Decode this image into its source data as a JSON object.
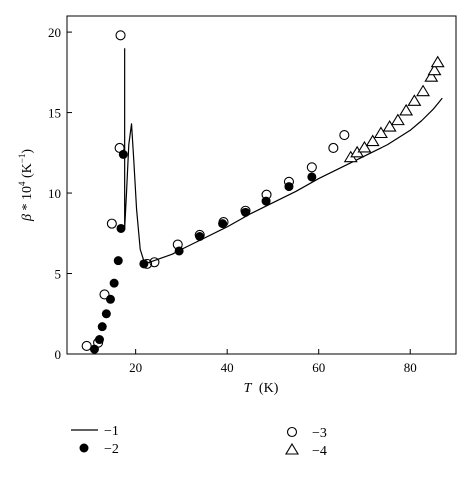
{
  "chart_data": {
    "type": "scatter",
    "xlabel": {
      "var": "T",
      "unit": "(K)"
    },
    "ylabel": {
      "var": "β",
      "mult": " * 10",
      "exp": "4",
      "unit_open": " (K",
      "unit_exp": "−1",
      "unit_close": ")"
    },
    "xlim": [
      5,
      90
    ],
    "ylim": [
      0,
      21
    ],
    "x_ticks": [
      20,
      40,
      60,
      80
    ],
    "x_tick_labels": [
      "20",
      "40",
      "60",
      "80"
    ],
    "y_ticks": [
      0,
      5,
      10,
      15,
      20
    ],
    "y_tick_labels": [
      "0",
      "5",
      "10",
      "15",
      "20"
    ],
    "grid": false,
    "legend_position": "bottom",
    "series": [
      {
        "name": "−1",
        "marker": "line",
        "points": [
          [
            17.6,
            19.0
          ],
          [
            17.6,
            7.8
          ],
          [
            17.6,
            7.8
          ],
          [
            18.0,
            10.0
          ],
          [
            18.5,
            13.0
          ],
          [
            19.1,
            14.3
          ],
          [
            19.6,
            12.0
          ],
          [
            20.2,
            9.0
          ],
          [
            21.0,
            6.5
          ],
          [
            22.0,
            5.6
          ],
          [
            24,
            5.8
          ],
          [
            26,
            6.0
          ],
          [
            28,
            6.2
          ],
          [
            30,
            6.5
          ],
          [
            35,
            7.2
          ],
          [
            40,
            7.9
          ],
          [
            45,
            8.7
          ],
          [
            50,
            9.4
          ],
          [
            55,
            10.1
          ],
          [
            60,
            10.9
          ],
          [
            65,
            11.6
          ],
          [
            70,
            12.3
          ],
          [
            75,
            13.0
          ],
          [
            80,
            13.9
          ],
          [
            82.5,
            14.5
          ],
          [
            85,
            15.2
          ],
          [
            87,
            15.9
          ]
        ]
      },
      {
        "name": "−2",
        "marker": "filled-circle",
        "points": [
          [
            11.0,
            0.3
          ],
          [
            12.1,
            0.9
          ],
          [
            12.7,
            1.7
          ],
          [
            13.6,
            2.5
          ],
          [
            14.5,
            3.4
          ],
          [
            15.3,
            4.4
          ],
          [
            16.2,
            5.8
          ],
          [
            16.8,
            7.8
          ],
          [
            17.3,
            12.4
          ],
          [
            21.8,
            5.6
          ],
          [
            29.5,
            6.4
          ],
          [
            34,
            7.3
          ],
          [
            39,
            8.1
          ],
          [
            44,
            8.8
          ],
          [
            48.5,
            9.5
          ],
          [
            53.5,
            10.4
          ],
          [
            58.5,
            11.0
          ]
        ]
      },
      {
        "name": "−3",
        "marker": "open-circle",
        "points": [
          [
            9.3,
            0.5
          ],
          [
            11.8,
            0.7
          ],
          [
            13.2,
            3.7
          ],
          [
            14.8,
            8.1
          ],
          [
            16.5,
            12.8
          ],
          [
            16.7,
            19.8
          ],
          [
            22.5,
            5.6
          ],
          [
            24.1,
            5.7
          ],
          [
            29.2,
            6.8
          ],
          [
            34.0,
            7.4
          ],
          [
            39.2,
            8.2
          ],
          [
            44.0,
            8.9
          ],
          [
            48.6,
            9.9
          ],
          [
            53.5,
            10.7
          ],
          [
            58.5,
            11.6
          ],
          [
            63.2,
            12.8
          ],
          [
            65.6,
            13.6
          ]
        ]
      },
      {
        "name": "−4",
        "marker": "open-triangle",
        "points": [
          [
            67,
            12.2
          ],
          [
            68.4,
            12.5
          ],
          [
            70,
            12.8
          ],
          [
            71.8,
            13.2
          ],
          [
            73.6,
            13.7
          ],
          [
            75.5,
            14.1
          ],
          [
            77.3,
            14.5
          ],
          [
            79.1,
            15.1
          ],
          [
            80.9,
            15.7
          ],
          [
            82.8,
            16.3
          ],
          [
            84.6,
            17.2
          ],
          [
            85.3,
            17.6
          ],
          [
            86,
            18.1
          ]
        ]
      }
    ]
  }
}
